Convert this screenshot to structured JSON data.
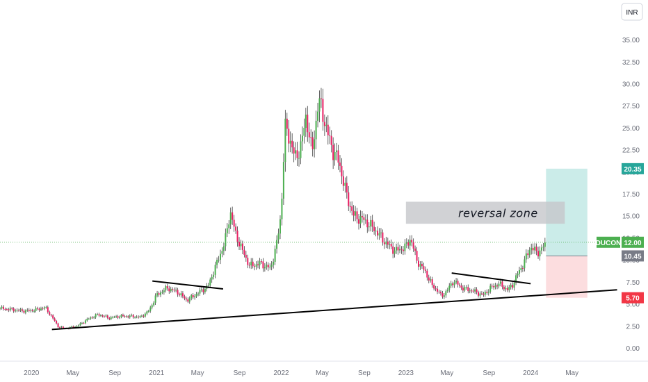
{
  "chart_data": {
    "type": "candlestick",
    "symbol": "DUCON",
    "currency": "INR",
    "y_range": [
      -1.5,
      39.5
    ],
    "y_ticks": [
      0.0,
      2.5,
      5.0,
      7.5,
      10.0,
      12.5,
      15.0,
      17.5,
      20.0,
      22.5,
      25.0,
      27.5,
      30.0,
      32.5,
      35.0
    ],
    "y_tick_labels": [
      "0.00",
      "2.50",
      "5.00",
      "7.50",
      "10.00",
      "12.50",
      "15.00",
      "17.50",
      "20.00",
      "22.50",
      "25.00",
      "27.50",
      "30.00",
      "32.50",
      "35.00"
    ],
    "x_range": [
      "2019-10-01",
      "2024-09-15"
    ],
    "x_ticks": [
      {
        "date": "2020-01-01",
        "label": "2020"
      },
      {
        "date": "2020-05-01",
        "label": "May"
      },
      {
        "date": "2020-09-01",
        "label": "Sep"
      },
      {
        "date": "2021-01-01",
        "label": "2021"
      },
      {
        "date": "2021-05-01",
        "label": "May"
      },
      {
        "date": "2021-09-01",
        "label": "Sep"
      },
      {
        "date": "2022-01-01",
        "label": "2022"
      },
      {
        "date": "2022-05-01",
        "label": "May"
      },
      {
        "date": "2022-09-01",
        "label": "Sep"
      },
      {
        "date": "2023-01-01",
        "label": "2023"
      },
      {
        "date": "2023-05-01",
        "label": "May"
      },
      {
        "date": "2023-09-01",
        "label": "Sep"
      },
      {
        "date": "2024-01-01",
        "label": "2024"
      },
      {
        "date": "2024-05-01",
        "label": "May"
      }
    ],
    "price_path": [
      [
        "2019-10-01",
        4.5
      ],
      [
        "2019-11-15",
        4.3
      ],
      [
        "2019-12-15",
        4.2
      ],
      [
        "2020-01-10",
        4.3
      ],
      [
        "2020-02-10",
        4.6
      ],
      [
        "2020-02-25",
        3.8
      ],
      [
        "2020-03-20",
        2.4
      ],
      [
        "2020-04-10",
        2.2
      ],
      [
        "2020-05-15",
        2.5
      ],
      [
        "2020-06-15",
        3.3
      ],
      [
        "2020-07-15",
        3.8
      ],
      [
        "2020-08-15",
        3.4
      ],
      [
        "2020-09-15",
        3.6
      ],
      [
        "2020-10-15",
        3.6
      ],
      [
        "2020-11-15",
        3.5
      ],
      [
        "2020-12-10",
        4.2
      ],
      [
        "2021-01-01",
        6.0
      ],
      [
        "2021-02-01",
        6.8
      ],
      [
        "2021-03-01",
        6.4
      ],
      [
        "2021-04-01",
        5.4
      ],
      [
        "2021-05-01",
        6.2
      ],
      [
        "2021-06-01",
        7.0
      ],
      [
        "2021-06-25",
        9.5
      ],
      [
        "2021-07-20",
        12.0
      ],
      [
        "2021-08-05",
        15.5
      ],
      [
        "2021-08-20",
        13.0
      ],
      [
        "2021-09-10",
        11.0
      ],
      [
        "2021-10-01",
        9.3
      ],
      [
        "2021-11-01",
        9.6
      ],
      [
        "2021-12-01",
        9.0
      ],
      [
        "2021-12-20",
        12.0
      ],
      [
        "2022-01-01",
        15.5
      ],
      [
        "2022-01-12",
        25.0
      ],
      [
        "2022-01-25",
        24.0
      ],
      [
        "2022-02-10",
        21.5
      ],
      [
        "2022-03-01",
        23.0
      ],
      [
        "2022-03-15",
        26.5
      ],
      [
        "2022-04-01",
        22.0
      ],
      [
        "2022-04-20",
        28.0
      ],
      [
        "2022-05-01",
        27.0
      ],
      [
        "2022-05-15",
        24.5
      ],
      [
        "2022-06-01",
        22.5
      ],
      [
        "2022-06-20",
        21.0
      ],
      [
        "2022-07-10",
        17.5
      ],
      [
        "2022-08-01",
        15.0
      ],
      [
        "2022-09-01",
        14.5
      ],
      [
        "2022-10-01",
        13.5
      ],
      [
        "2022-11-01",
        12.0
      ],
      [
        "2022-12-01",
        11.0
      ],
      [
        "2023-01-01",
        11.5
      ],
      [
        "2023-01-15",
        12.5
      ],
      [
        "2023-02-01",
        10.0
      ],
      [
        "2023-03-01",
        8.5
      ],
      [
        "2023-03-20",
        7.0
      ],
      [
        "2023-04-05",
        6.5
      ],
      [
        "2023-04-15",
        5.8
      ],
      [
        "2023-05-01",
        6.5
      ],
      [
        "2023-05-20",
        7.6
      ],
      [
        "2023-06-15",
        6.8
      ],
      [
        "2023-07-15",
        6.5
      ],
      [
        "2023-08-15",
        6.0
      ],
      [
        "2023-09-05",
        6.8
      ],
      [
        "2023-10-01",
        7.3
      ],
      [
        "2023-10-25",
        6.6
      ],
      [
        "2023-11-10",
        7.2
      ],
      [
        "2023-11-25",
        8.5
      ],
      [
        "2023-12-10",
        9.5
      ],
      [
        "2024-01-01",
        11.5
      ],
      [
        "2024-01-20",
        10.8
      ],
      [
        "2024-02-01",
        11.2
      ],
      [
        "2024-02-15",
        11.8
      ]
    ],
    "trendlines": [
      {
        "from": [
          "2020-03-01",
          2.1
        ],
        "to": [
          "2024-09-10",
          6.6
        ],
        "style": "solid"
      },
      {
        "from": [
          "2020-12-20",
          7.6
        ],
        "to": [
          "2021-07-15",
          6.7
        ],
        "style": "solid"
      },
      {
        "from": [
          "2023-05-15",
          8.5
        ],
        "to": [
          "2024-01-01",
          7.3
        ],
        "style": "solid"
      }
    ],
    "reversal_zone": {
      "from": "2023-01-01",
      "to": "2024-04-10",
      "top": 16.6,
      "bottom": 14.1,
      "label": "reversal zone"
    },
    "position": {
      "start": "2024-02-15",
      "end": "2024-06-15",
      "entry": 10.45,
      "target": 20.35,
      "stop": 5.7
    },
    "current_price": 12.0,
    "price_labels": [
      {
        "value": 20.35,
        "text": "20.35",
        "color": "#26a69a"
      },
      {
        "value": 12.0,
        "text": "12.00",
        "color": "#4caf50",
        "symbol": "DUCON"
      },
      {
        "value": 10.45,
        "text": "10.45",
        "color": "#787b86"
      },
      {
        "value": 5.7,
        "text": "5.70",
        "color": "#f23645"
      }
    ]
  },
  "colors": {
    "up": "#4caf50",
    "down": "#e91e63",
    "axis_text": "#6a6d78",
    "trendline": "#000000",
    "zone": "#c6c7cb",
    "target_area": "#b9e6e2",
    "stop_area": "#fcd7d9",
    "price_line": "#4caf50"
  }
}
